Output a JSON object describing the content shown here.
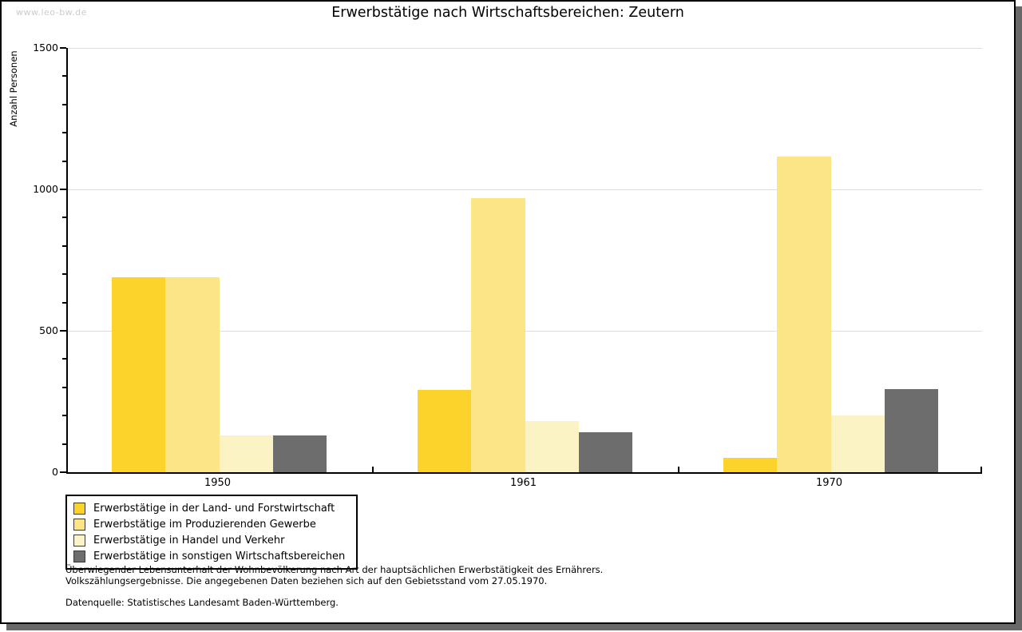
{
  "watermark": "www.leo-bw.de",
  "header": {
    "title": "Erwerbstätige nach Wirtschaftsbereichen: Zeutern"
  },
  "chart_data": {
    "type": "bar",
    "title": "Erwerbstätige nach Wirtschaftsbereichen: Zeutern",
    "xlabel": "",
    "ylabel": "Anzahl Personen",
    "ylim": [
      0,
      1500
    ],
    "ytick_major": [
      0,
      500,
      1000,
      1500
    ],
    "ytick_minor_step": 100,
    "grid": "horizontal-major-only",
    "legend_position": "bottom-left",
    "categories": [
      "1950",
      "1961",
      "1970"
    ],
    "series": [
      {
        "name": "Erwerbstätige in der Land- und Forstwirtschaft",
        "color": "#fbd32b",
        "values": [
          690,
          290,
          50
        ]
      },
      {
        "name": "Erwerbstätige im Produzierenden Gewerbe",
        "color": "#fbe586",
        "values": [
          690,
          970,
          1115
        ]
      },
      {
        "name": "Erwerbstätige in Handel und Verkehr",
        "color": "#fcf3c5",
        "values": [
          130,
          180,
          200
        ]
      },
      {
        "name": "Erwerbstätige in sonstigen Wirtschaftsbereichen",
        "color": "#6d6d6d",
        "values": [
          130,
          140,
          295
        ]
      }
    ]
  },
  "footnotes": {
    "line1": "Überwiegender Lebensunterhalt der Wohnbevölkerung nach Art der hauptsächlichen Erwerbstätigkeit des Ernährers.",
    "line2": "Volkszählungsergebnisse. Die angegebenen Daten beziehen sich auf den Gebietsstand vom 27.05.1970.",
    "source": "Datenquelle: Statistisches Landesamt Baden-Württemberg."
  },
  "colors": {
    "gridline": "#dddddd",
    "axis": "#000000",
    "frame_shadow": "#686868",
    "watermark": "#cccccc"
  }
}
